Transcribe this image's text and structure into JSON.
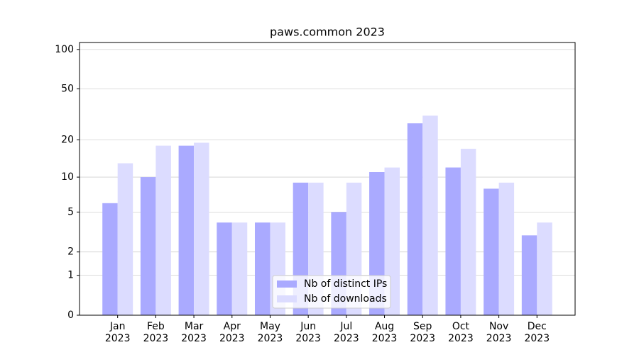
{
  "chart_data": {
    "type": "bar",
    "title": "paws.common 2023",
    "categories": [
      [
        "Jan",
        "2023"
      ],
      [
        "Feb",
        "2023"
      ],
      [
        "Mar",
        "2023"
      ],
      [
        "Apr",
        "2023"
      ],
      [
        "May",
        "2023"
      ],
      [
        "Jun",
        "2023"
      ],
      [
        "Jul",
        "2023"
      ],
      [
        "Aug",
        "2023"
      ],
      [
        "Sep",
        "2023"
      ],
      [
        "Oct",
        "2023"
      ],
      [
        "Nov",
        "2023"
      ],
      [
        "Dec",
        "2023"
      ]
    ],
    "series": [
      {
        "name": "Nb of distinct IPs",
        "color": "#aaaaff",
        "values": [
          6,
          10,
          18,
          4,
          4,
          9,
          5,
          11,
          27,
          12,
          8,
          3
        ]
      },
      {
        "name": "Nb of downloads",
        "color": "#dcdcff",
        "values": [
          13,
          18,
          19,
          4,
          4,
          9,
          9,
          12,
          31,
          17,
          9,
          4
        ]
      }
    ],
    "yscale": "log1p",
    "ylim": [
      0,
      113
    ],
    "yticks": [
      0,
      1,
      2,
      5,
      10,
      20,
      50,
      100
    ],
    "grid": true,
    "legend": "lower center"
  }
}
